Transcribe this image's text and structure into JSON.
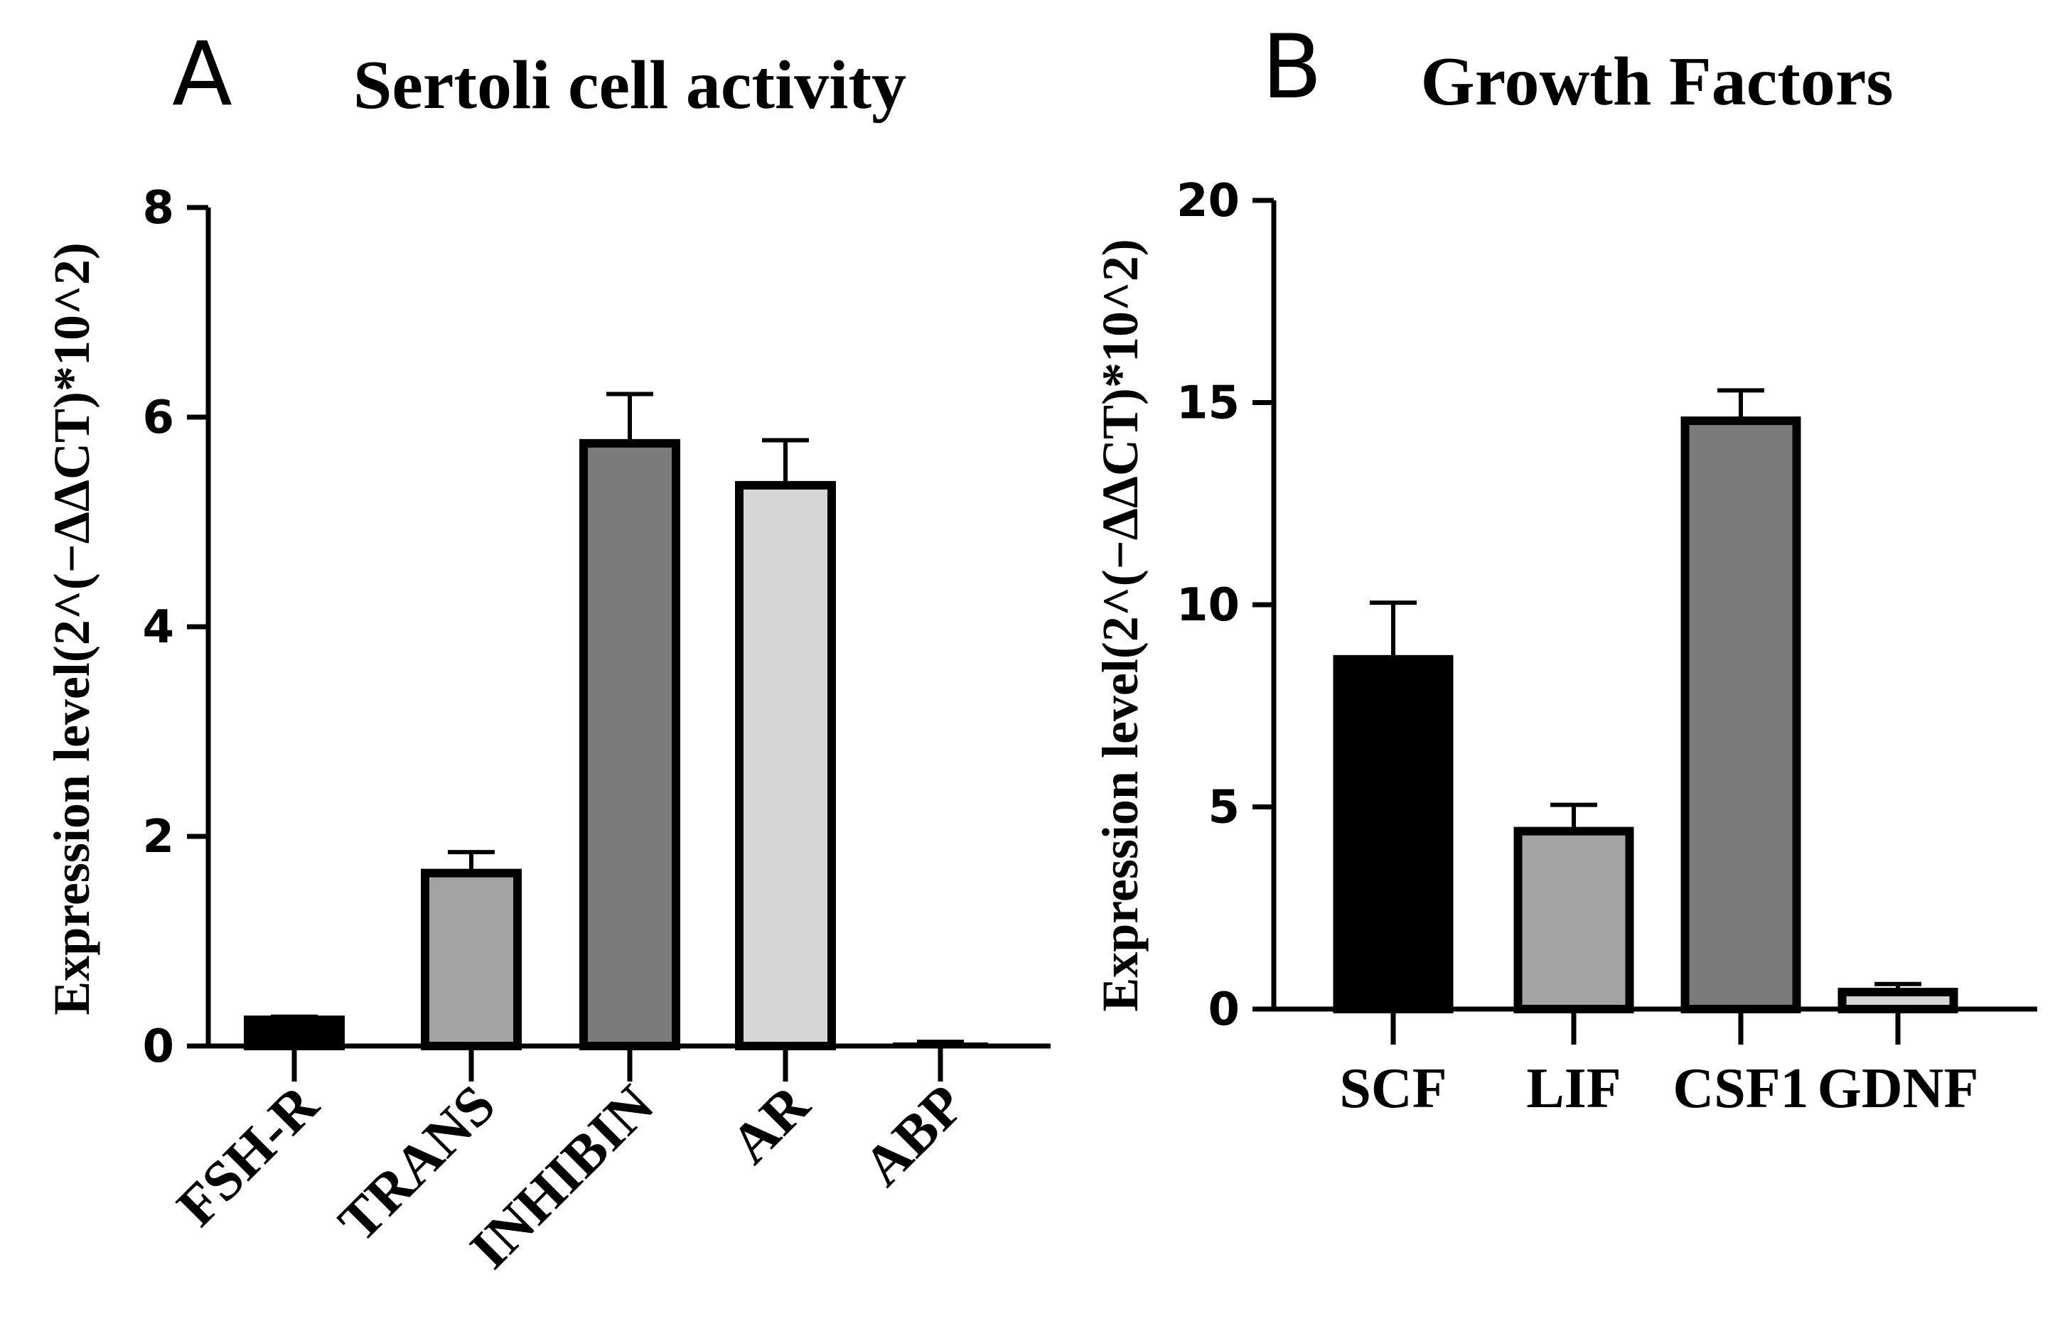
{
  "chart_data": [
    {
      "type": "bar",
      "panel_label": "A",
      "title": "Sertoli cell activity",
      "ylabel": "Expression level(2^(−ΔΔCT)*10^2)",
      "xlabel": "",
      "ylim": [
        0,
        8
      ],
      "yticks": [
        "0",
        "2",
        "4",
        "6",
        "8"
      ],
      "categories": [
        "FSH-R",
        "TRANS",
        "INHIBIN",
        "AR",
        "ABP"
      ],
      "values": [
        0.25,
        1.65,
        5.75,
        5.35,
        0.02
      ],
      "errors": [
        0.03,
        0.2,
        0.47,
        0.43,
        0.02
      ],
      "fills": [
        "#000000",
        "#a3a3a6",
        "#7b7b7b",
        "#d6d6d6",
        "#000000"
      ],
      "tick_rotation": "diagonal",
      "grid": false
    },
    {
      "type": "bar",
      "panel_label": "B",
      "title": "Growth Factors",
      "ylabel": "Expression level(2^(−ΔΔCT)*10^2)",
      "xlabel": "",
      "ylim": [
        0,
        20
      ],
      "yticks": [
        "0",
        "5",
        "10",
        "15",
        "20"
      ],
      "categories": [
        "SCF",
        "LIF",
        "CSF1",
        "GDNF"
      ],
      "values": [
        8.65,
        4.4,
        14.55,
        0.42
      ],
      "errors": [
        1.4,
        0.65,
        0.75,
        0.2
      ],
      "fills": [
        "#000000",
        "#a3a3a6",
        "#7b7b7b",
        "#d6d6d6"
      ],
      "tick_rotation": "horizontal",
      "grid": false
    }
  ]
}
